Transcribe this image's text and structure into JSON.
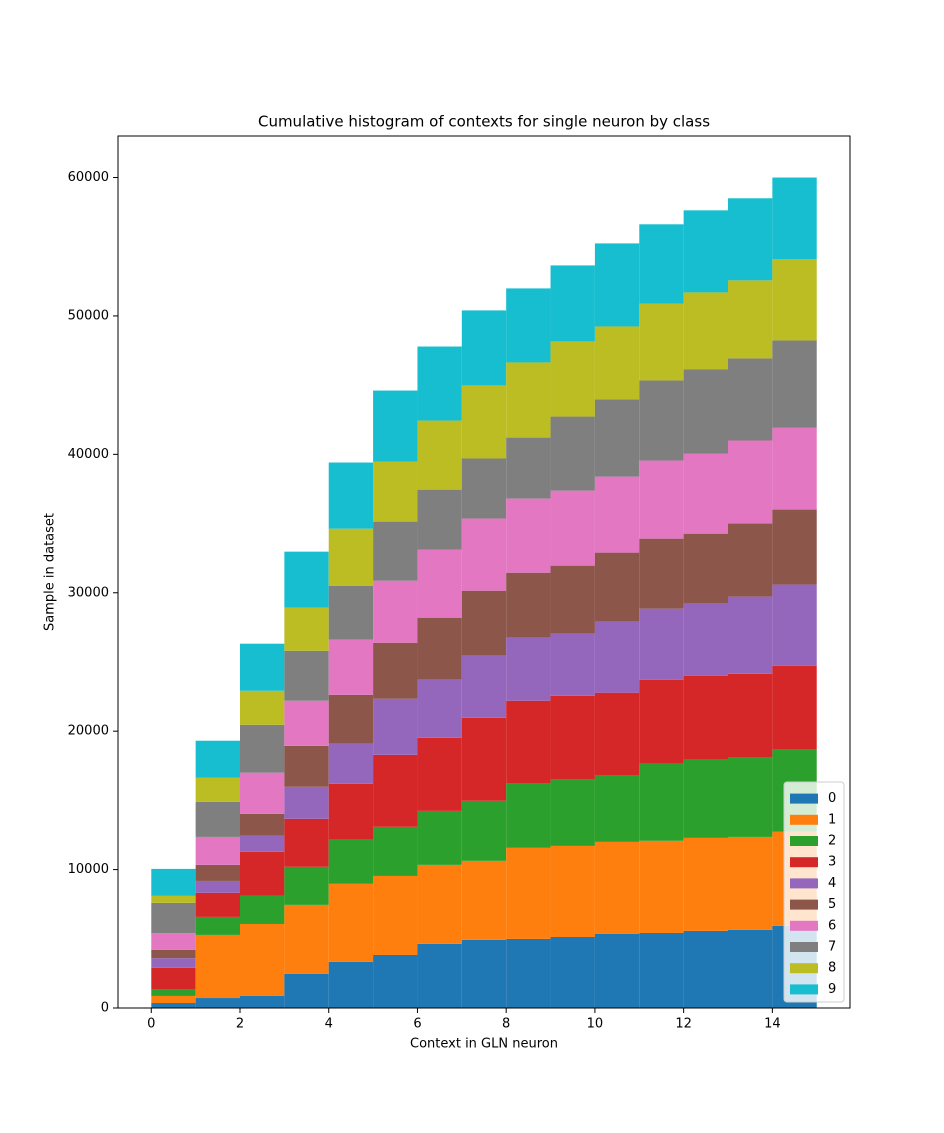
{
  "chart_data": {
    "type": "histogram",
    "stacked": true,
    "title": "Cumulative histogram of contexts for single neuron by class",
    "xlabel": "Context in GLN neuron",
    "ylabel": "Sample in dataset",
    "bins": [
      0,
      1,
      2,
      3,
      4,
      5,
      6,
      7,
      8,
      9,
      10,
      11,
      12,
      13,
      14,
      15
    ],
    "series": [
      {
        "name": "0",
        "color": "#1f77b4",
        "values": [
          360,
          720,
          870,
          2460,
          3330,
          3830,
          4630,
          4920,
          4990,
          5130,
          5350,
          5420,
          5570,
          5640,
          5930
        ]
      },
      {
        "name": "1",
        "color": "#ff7f0e",
        "values": [
          510,
          4560,
          5200,
          4990,
          5640,
          5710,
          5710,
          5710,
          6580,
          6580,
          6650,
          6660,
          6720,
          6720,
          6800
        ]
      },
      {
        "name": "2",
        "color": "#2ca02c",
        "values": [
          500,
          1300,
          2030,
          2750,
          3180,
          3550,
          3900,
          4340,
          4630,
          4780,
          4780,
          5560,
          5640,
          5720,
          5930
        ]
      },
      {
        "name": "3",
        "color": "#d62728",
        "values": [
          1530,
          1740,
          3180,
          3470,
          4050,
          5200,
          5280,
          6000,
          6000,
          6070,
          6000,
          6080,
          6080,
          6070,
          6070
        ]
      },
      {
        "name": "4",
        "color": "#9467bd",
        "values": [
          700,
          860,
          1160,
          2310,
          2890,
          4050,
          4200,
          4480,
          4550,
          4480,
          5130,
          5130,
          5200,
          5570,
          5860
        ]
      },
      {
        "name": "5",
        "color": "#8c564b",
        "values": [
          600,
          1160,
          1590,
          2960,
          3540,
          4050,
          4480,
          4700,
          4700,
          4920,
          4990,
          5060,
          5060,
          5280,
          5420
        ]
      },
      {
        "name": "6",
        "color": "#e377c2",
        "values": [
          1200,
          2020,
          2970,
          3260,
          3980,
          4480,
          4920,
          5210,
          5350,
          5420,
          5490,
          5640,
          5790,
          6000,
          5930
        ]
      },
      {
        "name": "7",
        "color": "#7f7f7f",
        "values": [
          2200,
          2540,
          3460,
          3610,
          3900,
          4270,
          4330,
          4340,
          4410,
          5350,
          5570,
          5790,
          6070,
          5930,
          6290
        ]
      },
      {
        "name": "8",
        "color": "#bcbd22",
        "values": [
          500,
          1730,
          2460,
          3110,
          4120,
          4340,
          4990,
          5280,
          5430,
          5430,
          5280,
          5560,
          5570,
          5640,
          5860
        ]
      },
      {
        "name": "9",
        "color": "#17becf",
        "values": [
          1950,
          2680,
          3400,
          4050,
          4780,
          5130,
          5350,
          5420,
          5350,
          5490,
          6000,
          5720,
          5930,
          5930,
          5910
        ]
      }
    ],
    "xlim": [
      -0.75,
      15.75
    ],
    "ylim": [
      0,
      63000
    ],
    "xticks": [
      0,
      2,
      4,
      6,
      8,
      10,
      12,
      14
    ],
    "yticks": [
      0,
      10000,
      20000,
      30000,
      40000,
      50000,
      60000
    ],
    "legend": "lower right"
  }
}
